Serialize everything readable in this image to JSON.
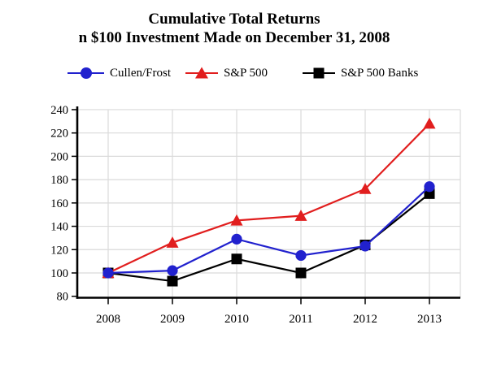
{
  "chart_data": {
    "type": "line",
    "title": "Cumulative Total Returns",
    "subtitle": "n $100 Investment Made on December 31, 2008",
    "categories": [
      "2008",
      "2009",
      "2010",
      "2011",
      "2012",
      "2013"
    ],
    "series": [
      {
        "name": "Cullen/Frost",
        "marker": "circle",
        "color": "#2121CE",
        "values": [
          100,
          102,
          129,
          115,
          123,
          174
        ]
      },
      {
        "name": "S&P 500",
        "marker": "triangle",
        "color": "#E11E1E",
        "values": [
          100,
          126,
          145,
          149,
          172,
          228
        ]
      },
      {
        "name": "S&P 500 Banks",
        "marker": "square",
        "color": "#000000",
        "values": [
          100,
          93,
          112,
          100,
          124,
          168
        ]
      }
    ],
    "ylim": [
      80,
      240
    ],
    "yticks": [
      80,
      100,
      120,
      140,
      160,
      180,
      200,
      220,
      240
    ],
    "grid": true,
    "legend_position": "top",
    "xlabel": "",
    "ylabel": ""
  },
  "colors": {
    "background": "#ffffff",
    "axis": "#000000",
    "grid": "#DADADA",
    "text": "#000000"
  }
}
